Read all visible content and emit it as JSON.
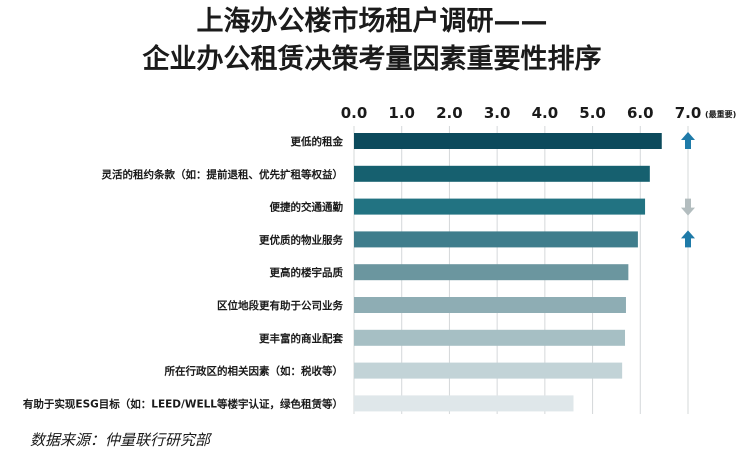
{
  "title_line1": "上海办公楼市场租户调研——",
  "title_line2": "企业办公租赁决策考量因素重要性排序",
  "source": "数据来源：仲量联行研究部",
  "chart_data": {
    "type": "bar",
    "orientation": "horizontal",
    "title": "上海办公楼市场租户调研——企业办公租赁决策考量因素重要性排序",
    "xlim": [
      0,
      7
    ],
    "x_ticks": [
      "0.0",
      "1.0",
      "2.0",
      "3.0",
      "4.0",
      "5.0",
      "6.0",
      "7.0"
    ],
    "x_axis_note": "(最重要)",
    "grid": true,
    "categories": [
      "更低的租金",
      "灵活的租约条款（如：提前退租、优先扩租等权益）",
      "便捷的交通通勤",
      "更优质的物业服务",
      "更高的楼宇品质",
      "区位地段更有助于公司业务",
      "更丰富的商业配套",
      "所在行政区的相关因素（如：税收等）",
      "有助于实现ESG目标（如：LEED/WELL等楼宇认证，绿色租赁等）"
    ],
    "values": [
      6.45,
      6.2,
      6.1,
      5.95,
      5.75,
      5.7,
      5.68,
      5.62,
      4.6
    ],
    "bar_colors": [
      "#0c4a5c",
      "#16606f",
      "#227382",
      "#3f7d8c",
      "#6b969f",
      "#8eadb4",
      "#a6bfc4",
      "#c2d3d7",
      "#dfe7ea"
    ],
    "trend_arrows": [
      "up",
      null,
      "down",
      "up",
      null,
      null,
      null,
      null,
      null
    ],
    "arrow_colors": {
      "up": "#1e7aa8",
      "down": "#b3bdbf"
    }
  }
}
